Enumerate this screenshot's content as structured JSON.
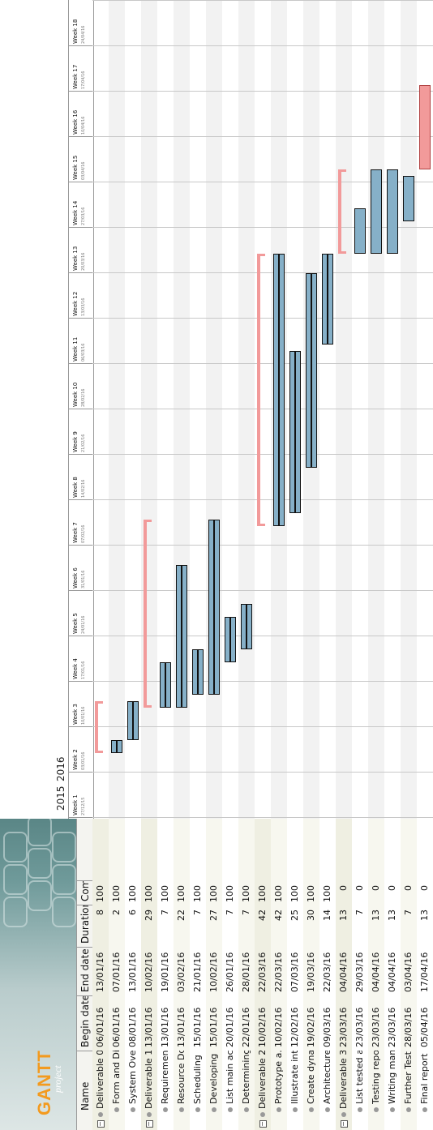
{
  "logo": {
    "text": "GANTT",
    "subtext": "project"
  },
  "columns": [
    {
      "key": "name",
      "label": "Name"
    },
    {
      "key": "begin",
      "label": "Begin date"
    },
    {
      "key": "end",
      "label": "End date"
    },
    {
      "key": "duration",
      "label": "Duration"
    },
    {
      "key": "complete",
      "label": "Comple..."
    }
  ],
  "years": [
    "2015",
    "2016"
  ],
  "weeks": [
    {
      "label": "Week 1",
      "date": "27/12/15"
    },
    {
      "label": "Week 2",
      "date": "03/01/16"
    },
    {
      "label": "Week 3",
      "date": "10/01/16"
    },
    {
      "label": "Week 4",
      "date": "17/01/16"
    },
    {
      "label": "Week 5",
      "date": "24/01/16"
    },
    {
      "label": "Week 6",
      "date": "31/01/16"
    },
    {
      "label": "Week 7",
      "date": "07/02/16"
    },
    {
      "label": "Week 8",
      "date": "14/02/16"
    },
    {
      "label": "Week 9",
      "date": "21/02/16"
    },
    {
      "label": "Week 10",
      "date": "28/02/16"
    },
    {
      "label": "Week 11",
      "date": "06/03/16"
    },
    {
      "label": "Week 12",
      "date": "13/03/16"
    },
    {
      "label": "Week 13",
      "date": "20/03/16"
    },
    {
      "label": "Week 14",
      "date": "27/03/16"
    },
    {
      "label": "Week 15",
      "date": "03/04/16"
    },
    {
      "label": "Week 16",
      "date": "10/04/16"
    },
    {
      "label": "Week 17",
      "date": "17/04/16"
    },
    {
      "label": "Week 18",
      "date": "24/04/16"
    }
  ],
  "tasks": [
    {
      "name": "Deliverable 0",
      "begin": "06/01/16",
      "end": "13/01/16",
      "duration": "8",
      "complete": "100",
      "group": true,
      "milestone": false
    },
    {
      "name": "Form and Di...",
      "begin": "06/01/16",
      "end": "07/01/16",
      "duration": "2",
      "complete": "100",
      "group": false,
      "milestone": false
    },
    {
      "name": "System Over...",
      "begin": "08/01/16",
      "end": "13/01/16",
      "duration": "6",
      "complete": "100",
      "group": false,
      "milestone": false
    },
    {
      "name": "Deliverable 1",
      "begin": "13/01/16",
      "end": "10/02/16",
      "duration": "29",
      "complete": "100",
      "group": true,
      "milestone": false
    },
    {
      "name": "Requirements",
      "begin": "13/01/16",
      "end": "19/01/16",
      "duration": "7",
      "complete": "100",
      "group": false,
      "milestone": false
    },
    {
      "name": "Resource Do...",
      "begin": "13/01/16",
      "end": "03/02/16",
      "duration": "22",
      "complete": "100",
      "group": false,
      "milestone": false
    },
    {
      "name": "Scheduling",
      "begin": "15/01/16",
      "end": "21/01/16",
      "duration": "7",
      "complete": "100",
      "group": false,
      "milestone": false
    },
    {
      "name": "Developing ...",
      "begin": "15/01/16",
      "end": "10/02/16",
      "duration": "27",
      "complete": "100",
      "group": false,
      "milestone": false
    },
    {
      "name": "List main ac...",
      "begin": "20/01/16",
      "end": "26/01/16",
      "duration": "7",
      "complete": "100",
      "group": false,
      "milestone": false
    },
    {
      "name": "Determining...",
      "begin": "22/01/16",
      "end": "28/01/16",
      "duration": "7",
      "complete": "100",
      "group": false,
      "milestone": false
    },
    {
      "name": "Deliverable 2",
      "begin": "10/02/16",
      "end": "22/03/16",
      "duration": "42",
      "complete": "100",
      "group": true,
      "milestone": false
    },
    {
      "name": "Prototype a...",
      "begin": "10/02/16",
      "end": "22/03/16",
      "duration": "42",
      "complete": "100",
      "group": false,
      "milestone": false
    },
    {
      "name": "Illustrate int...",
      "begin": "12/02/16",
      "end": "07/03/16",
      "duration": "25",
      "complete": "100",
      "group": false,
      "milestone": false
    },
    {
      "name": "Create dyna...",
      "begin": "19/02/16",
      "end": "19/03/16",
      "duration": "30",
      "complete": "100",
      "group": false,
      "milestone": false
    },
    {
      "name": "Architecture...",
      "begin": "09/03/16",
      "end": "22/03/16",
      "duration": "14",
      "complete": "100",
      "group": false,
      "milestone": false
    },
    {
      "name": "Deliverable 3",
      "begin": "23/03/16",
      "end": "04/04/16",
      "duration": "13",
      "complete": "0",
      "group": true,
      "milestone": false
    },
    {
      "name": "List tested a...",
      "begin": "23/03/16",
      "end": "29/03/16",
      "duration": "7",
      "complete": "0",
      "group": false,
      "milestone": false
    },
    {
      "name": "Testing report",
      "begin": "23/03/16",
      "end": "04/04/16",
      "duration": "13",
      "complete": "0",
      "group": false,
      "milestone": false
    },
    {
      "name": "Writing man...",
      "begin": "23/03/16",
      "end": "04/04/16",
      "duration": "13",
      "complete": "0",
      "group": false,
      "milestone": false
    },
    {
      "name": "Further Testi...",
      "begin": "28/03/16",
      "end": "03/04/16",
      "duration": "7",
      "complete": "0",
      "group": false,
      "milestone": false
    },
    {
      "name": "Final report",
      "begin": "05/04/16",
      "end": "17/04/16",
      "duration": "13",
      "complete": "0",
      "group": false,
      "milestone": true
    }
  ],
  "colors": {
    "bar": "#86b0c8",
    "summary": "#f29a9a",
    "milestone": "#f29a9a",
    "alt_row": "#efefe2"
  }
}
